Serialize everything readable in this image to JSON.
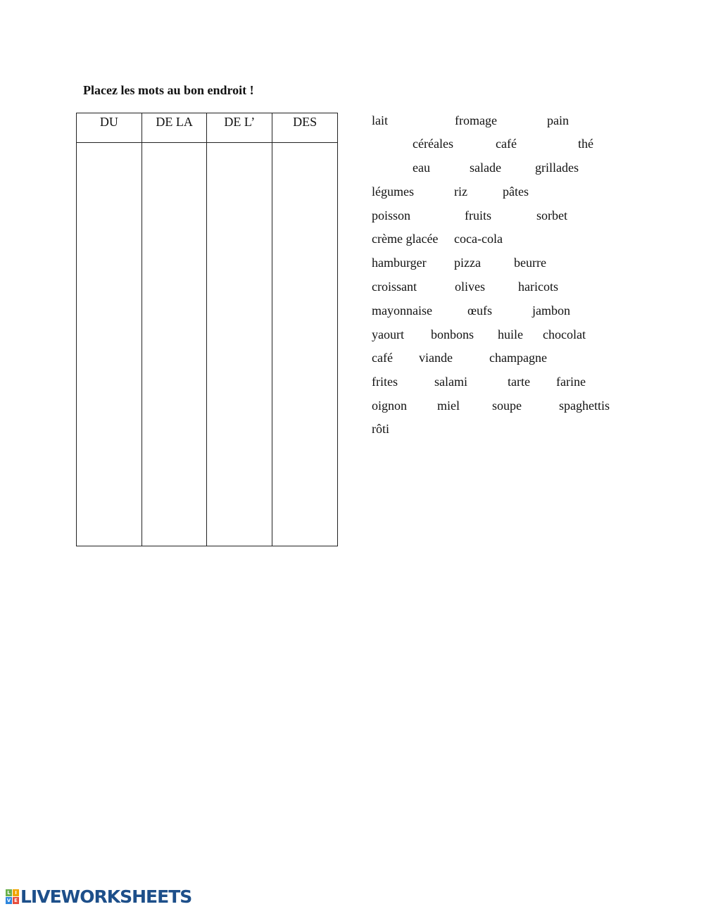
{
  "title": "Placez les mots au bon endroit !",
  "table": {
    "headers": [
      "DU",
      "DE LA",
      "DE L’",
      "DES"
    ]
  },
  "words": [
    "lait",
    "fromage",
    "pain",
    "céréales",
    "café",
    "thé",
    "eau",
    "salade",
    "grillades",
    "légumes",
    "riz",
    "pâtes",
    "poisson",
    "fruits",
    "sorbet",
    "crème glacée",
    "coca-cola",
    "hamburger",
    "pizza",
    "beurre",
    "croissant",
    "olives",
    "haricots",
    "mayonnaise",
    "œufs",
    "jambon",
    "yaourt",
    "bonbons",
    "huile",
    "chocolat",
    "café",
    "viande",
    "champagne",
    "frites",
    "salami",
    "tarte",
    "farine",
    "oignon",
    "miel",
    "soupe",
    "spaghettis",
    "rôti"
  ],
  "logo": {
    "text": "LIVEWORKSHEETS",
    "colors": [
      "#6ab04c",
      "#f0a500",
      "#2e86de",
      "#e74c3c"
    ]
  }
}
